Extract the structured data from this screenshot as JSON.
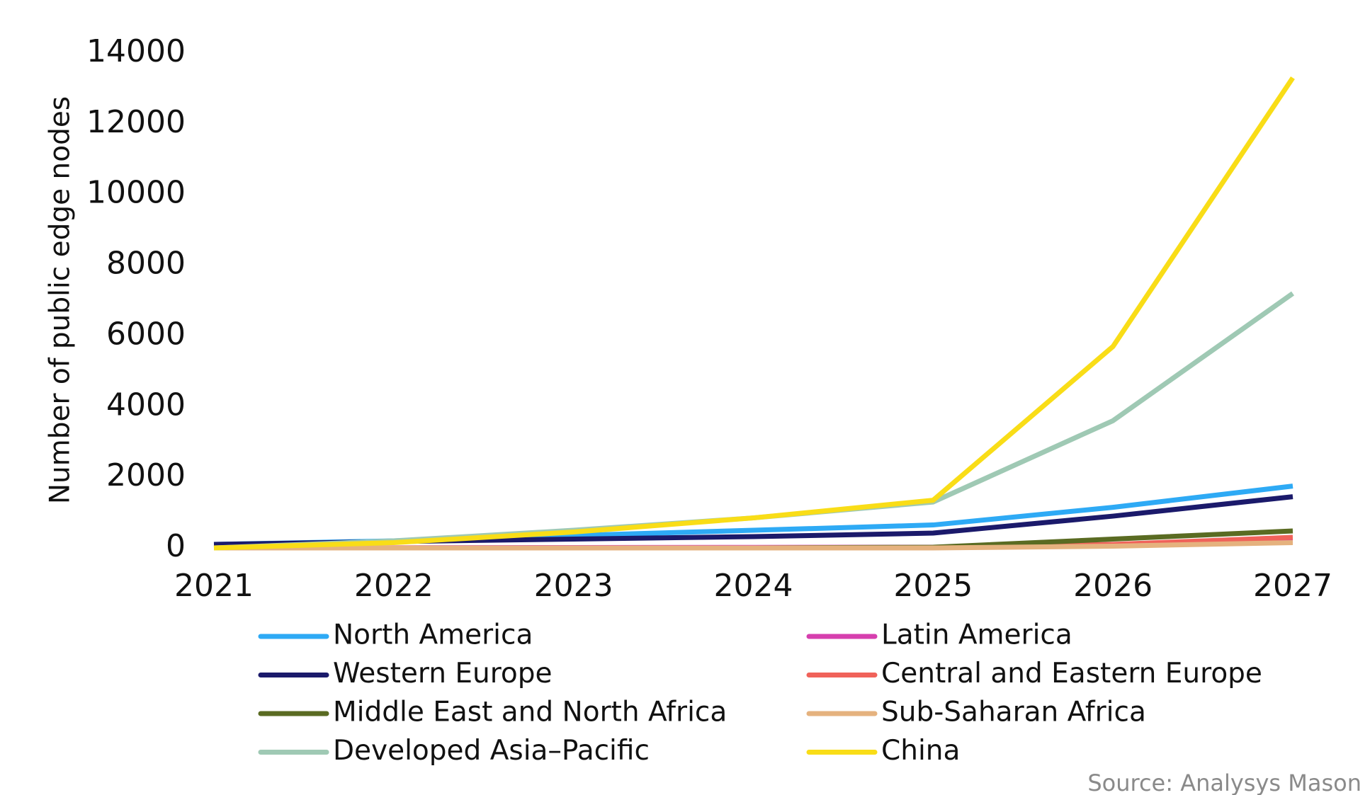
{
  "chart_data": {
    "type": "line",
    "y_label": "Number of public edge nodes",
    "source": "Source: Analysys Mason",
    "categories": [
      "2021",
      "2022",
      "2023",
      "2024",
      "2025",
      "2026",
      "2027"
    ],
    "ylim": [
      0,
      14000
    ],
    "yticks": [
      0,
      2000,
      4000,
      6000,
      8000,
      10000,
      12000,
      14000
    ],
    "grid": false,
    "series": [
      {
        "name": "North America",
        "color": "#2eaaf5",
        "values": [
          100,
          200,
          350,
          500,
          650,
          1150,
          1750
        ]
      },
      {
        "name": "Latin America",
        "color": "#d63fae",
        "values": [
          0,
          5,
          10,
          15,
          20,
          80,
          200
        ]
      },
      {
        "name": "Western Europe",
        "color": "#1b1a6b",
        "values": [
          100,
          180,
          250,
          320,
          420,
          900,
          1450
        ]
      },
      {
        "name": "Central and Eastern Europe",
        "color": "#f0625a",
        "values": [
          0,
          0,
          0,
          0,
          10,
          100,
          300
        ]
      },
      {
        "name": "Middle East and North Africa",
        "color": "#5a6b22",
        "values": [
          0,
          0,
          0,
          0,
          20,
          250,
          480
        ]
      },
      {
        "name": "Sub-Saharan Africa",
        "color": "#e5b27e",
        "values": [
          0,
          0,
          0,
          0,
          0,
          50,
          150
        ]
      },
      {
        "name": "Developed Asia–Pacific",
        "color": "#9fc9b4",
        "values": [
          0,
          200,
          500,
          850,
          1300,
          3600,
          7200
        ]
      },
      {
        "name": "China",
        "color": "#f9dd17",
        "values": [
          0,
          150,
          450,
          850,
          1350,
          5700,
          13300
        ]
      }
    ]
  }
}
